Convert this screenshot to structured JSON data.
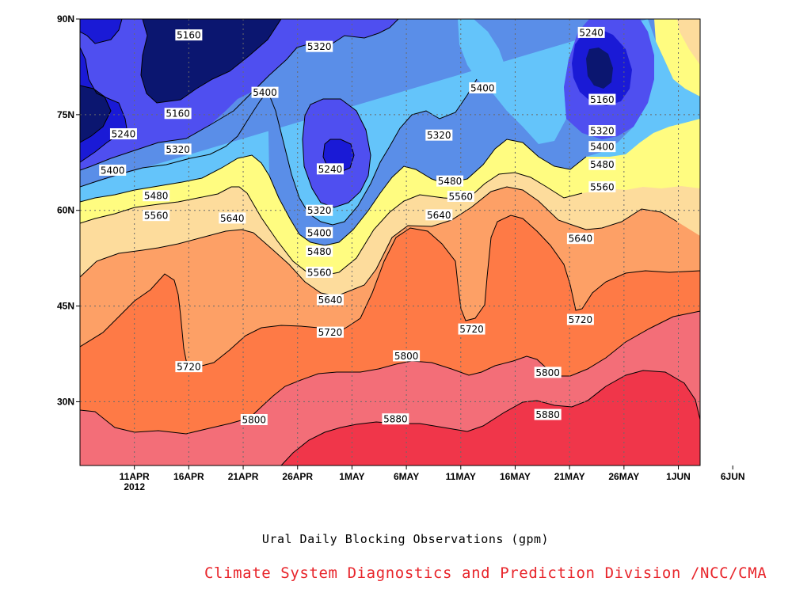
{
  "chart_data": {
    "type": "contour",
    "title": "Ural Daily Blocking Observations (gpm)",
    "credit": "Climate System Diagnostics and Prediction Division /NCC/CMA",
    "xaxis": {
      "ticks": [
        "11APR",
        "16APR",
        "21APR",
        "26APR",
        "1MAY",
        "6MAY",
        "11MAY",
        "16MAY",
        "21MAY",
        "26MAY",
        "1JUN",
        "6JUN"
      ],
      "year_label": "2012",
      "range": [
        "2012-04-10",
        "2012-06-06"
      ]
    },
    "yaxis": {
      "ticks": [
        "30N",
        "45N",
        "60N",
        "75N",
        "90N"
      ],
      "range": [
        20,
        90
      ]
    },
    "grid": "dotted",
    "levels": [
      5160,
      5240,
      5320,
      5400,
      5480,
      5560,
      5640,
      5720,
      5800,
      5880
    ],
    "colors": [
      "#0b1670",
      "#1a1ad6",
      "#4f4ff0",
      "#5a8ee8",
      "#64c4fa",
      "#fffc80",
      "#fddc9c",
      "#fda066",
      "#fe7a46",
      "#f36e78",
      "#f0364a"
    ],
    "contour_labels": [
      {
        "value": 5160,
        "date": "2012-04-20",
        "lat": 87.5
      },
      {
        "value": 5160,
        "date": "2012-04-19",
        "lat": 75.2
      },
      {
        "value": 5240,
        "date": "2012-04-14",
        "lat": 72.0
      },
      {
        "value": 5320,
        "date": "2012-04-19",
        "lat": 69.6
      },
      {
        "value": 5400,
        "date": "2012-04-13",
        "lat": 66.3
      },
      {
        "value": 5480,
        "date": "2012-04-17",
        "lat": 62.3
      },
      {
        "value": 5560,
        "date": "2012-04-17",
        "lat": 59.2
      },
      {
        "value": 5640,
        "date": "2012-04-24",
        "lat": 58.8
      },
      {
        "value": 5720,
        "date": "2012-04-20",
        "lat": 35.5
      },
      {
        "value": 5800,
        "date": "2012-04-26",
        "lat": 27.2
      },
      {
        "value": 5320,
        "date": "2012-05-02",
        "lat": 85.7
      },
      {
        "value": 5400,
        "date": "2012-04-27",
        "lat": 78.5
      },
      {
        "value": 5240,
        "date": "2012-05-03",
        "lat": 66.5
      },
      {
        "value": 5320,
        "date": "2012-05-02",
        "lat": 60.0
      },
      {
        "value": 5400,
        "date": "2012-05-02",
        "lat": 56.5
      },
      {
        "value": 5480,
        "date": "2012-05-02",
        "lat": 53.6
      },
      {
        "value": 5560,
        "date": "2012-05-02",
        "lat": 50.3
      },
      {
        "value": 5640,
        "date": "2012-05-03",
        "lat": 46.0
      },
      {
        "value": 5720,
        "date": "2012-05-03",
        "lat": 40.9
      },
      {
        "value": 5800,
        "date": "2012-05-10",
        "lat": 37.2
      },
      {
        "value": 5880,
        "date": "2012-05-09",
        "lat": 27.3
      },
      {
        "value": 5320,
        "date": "2012-05-13",
        "lat": 71.8
      },
      {
        "value": 5480,
        "date": "2012-05-14",
        "lat": 64.6
      },
      {
        "value": 5560,
        "date": "2012-05-15",
        "lat": 62.2
      },
      {
        "value": 5640,
        "date": "2012-05-13",
        "lat": 59.3
      },
      {
        "value": 5400,
        "date": "2012-05-17",
        "lat": 79.2
      },
      {
        "value": 5720,
        "date": "2012-05-16",
        "lat": 41.4
      },
      {
        "value": 5800,
        "date": "2012-05-23",
        "lat": 34.6
      },
      {
        "value": 5880,
        "date": "2012-05-23",
        "lat": 28.0
      },
      {
        "value": 5640,
        "date": "2012-05-26",
        "lat": 55.6
      },
      {
        "value": 5720,
        "date": "2012-05-26",
        "lat": 42.9
      },
      {
        "value": 5240,
        "date": "2012-05-27",
        "lat": 87.9
      },
      {
        "value": 5160,
        "date": "2012-05-28",
        "lat": 77.4
      },
      {
        "value": 5320,
        "date": "2012-05-28",
        "lat": 72.5
      },
      {
        "value": 5400,
        "date": "2012-05-28",
        "lat": 70.0
      },
      {
        "value": 5480,
        "date": "2012-05-28",
        "lat": 67.2
      },
      {
        "value": 5560,
        "date": "2012-05-28",
        "lat": 63.7
      }
    ]
  }
}
